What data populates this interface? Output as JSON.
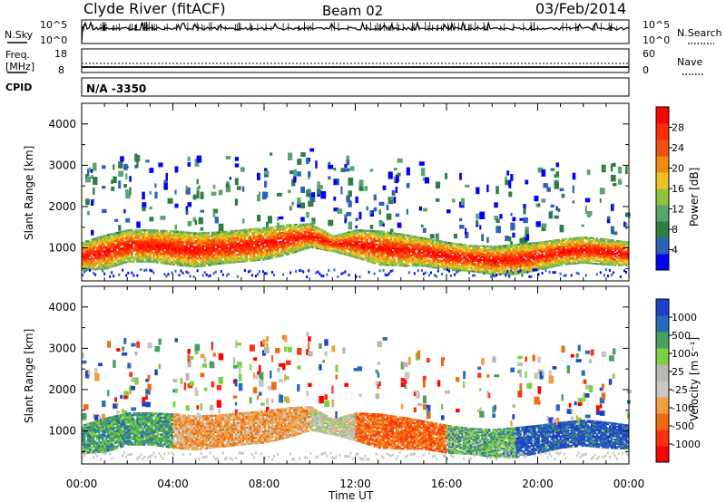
{
  "header": {
    "station": "Clyde River (fitACF)",
    "beam": "Beam 02",
    "date": "03/Feb/2014"
  },
  "nsky": {
    "label": "N.Sky",
    "tick_top": "10^5",
    "tick_bottom": "10^0",
    "right_label": "N.Search",
    "right_tick_top": "10^5",
    "right_tick_bottom": "10^0"
  },
  "freq": {
    "label_line1": "Freq.",
    "label_line2": "[MHz]",
    "tick_top": "18",
    "tick_bottom": "8",
    "right_label": "Nave",
    "right_tick_top": "60",
    "right_tick_bottom": "0"
  },
  "cpid": {
    "label": "CPID",
    "value": "N/A -3350"
  },
  "power_colorbar": {
    "label": "Power [dB]",
    "colors": [
      "#0000ff",
      "#2a62b8",
      "#2e7d45",
      "#5aa36e",
      "#8fc33a",
      "#f0c020",
      "#f08c10",
      "#f05010",
      "#ff2a00",
      "#ff0000"
    ],
    "ticks": [
      "4",
      "8",
      "12",
      "16",
      "20",
      "24",
      "28"
    ]
  },
  "velocity_colorbar": {
    "label": "Velocity [m s⁻¹]",
    "colors": [
      "#ff0000",
      "#ff3010",
      "#f06a10",
      "#f0a040",
      "#c8c8c0",
      "#b8b8b0",
      "#7ad040",
      "#4aa060",
      "#2a6ab8",
      "#2040c8"
    ],
    "ticks": [
      "-1000",
      "-500",
      "-100",
      "-25",
      "25",
      "100",
      "500",
      "1000"
    ]
  },
  "chart_data": [
    {
      "type": "heatmap",
      "name": "power",
      "ylabel": "Slant Range [km]",
      "ylim": [
        200,
        4500
      ],
      "y_ticks": [
        "1000",
        "2000",
        "3000",
        "4000"
      ],
      "x_ticks": [
        "00:00",
        "04:00",
        "08:00",
        "12:00",
        "16:00",
        "20:00",
        "00:00"
      ],
      "echo_band": {
        "hours": [
          0,
          1,
          2,
          3,
          4,
          5,
          6,
          7,
          8,
          9,
          10,
          11,
          12,
          13,
          14,
          15,
          16,
          17,
          18,
          19,
          20,
          21,
          22,
          23,
          24
        ],
        "center": [
          800,
          900,
          1050,
          1050,
          1000,
          950,
          1000,
          1050,
          1100,
          1200,
          1300,
          1100,
          1100,
          1000,
          950,
          900,
          800,
          750,
          700,
          720,
          800,
          900,
          950,
          900,
          850
        ],
        "width": [
          700,
          850,
          800,
          800,
          850,
          850,
          800,
          800,
          800,
          750,
          600,
          400,
          700,
          850,
          800,
          700,
          700,
          650,
          700,
          750,
          700,
          650,
          650,
          650,
          600
        ]
      }
    },
    {
      "type": "heatmap",
      "name": "velocity",
      "ylabel": "Slant Range [km]",
      "ylim": [
        200,
        4500
      ],
      "y_ticks": [
        "1000",
        "2000",
        "3000",
        "4000"
      ],
      "x_ticks": [
        "00:00",
        "04:00",
        "08:00",
        "12:00",
        "16:00",
        "20:00",
        "00:00"
      ],
      "xlabel": "Time UT"
    }
  ]
}
